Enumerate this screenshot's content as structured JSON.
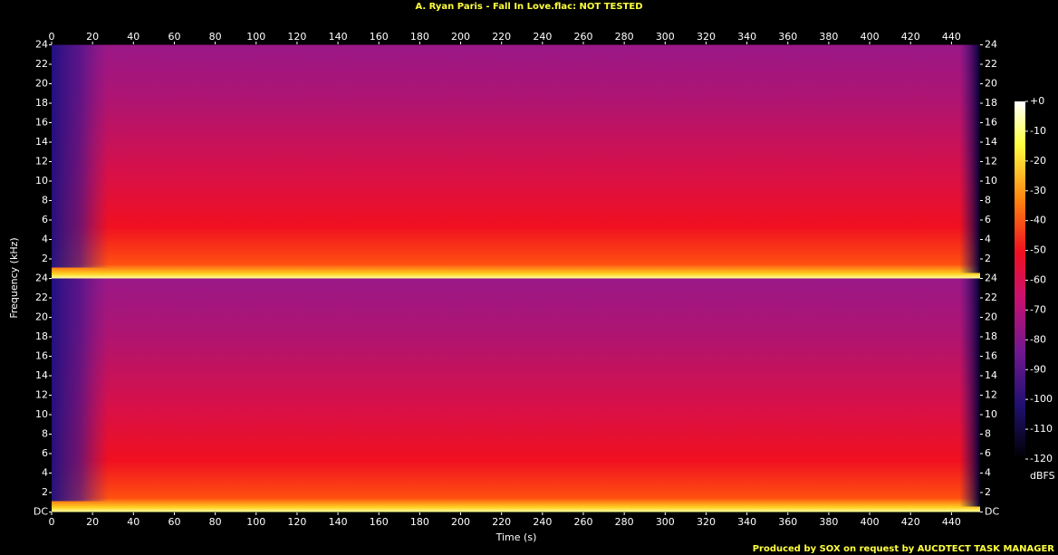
{
  "chart_data": {
    "type": "spectrogram",
    "title": "A. Ryan Paris - Fall In Love.flac: NOT TESTED",
    "x_label": "Time (s)",
    "y_label": "Frequency (kHz)",
    "xlim": [
      0,
      454
    ],
    "xticks": [
      0,
      20,
      40,
      60,
      80,
      100,
      120,
      140,
      160,
      180,
      200,
      220,
      240,
      260,
      280,
      300,
      320,
      340,
      360,
      380,
      400,
      420,
      440
    ],
    "channels": [
      {
        "ylim": [
          0,
          24
        ],
        "yticks": [
          2,
          4,
          6,
          8,
          10,
          12,
          14,
          16,
          18,
          20,
          22,
          24
        ]
      },
      {
        "ylim": [
          0,
          24
        ],
        "yticks": [
          {
            "value": 0,
            "label": "DC"
          },
          2,
          4,
          6,
          8,
          10,
          12,
          14,
          16,
          18,
          20,
          22,
          24
        ]
      }
    ],
    "colorbar": {
      "label": "dBFS",
      "lim": [
        -120,
        0
      ],
      "ticks": [
        {
          "value": 0,
          "label": "+0"
        },
        -10,
        -20,
        -30,
        -40,
        -50,
        -60,
        -70,
        -80,
        -90,
        -100,
        -110,
        -120
      ]
    },
    "footer": "Produced by SOX on request by AUCDTECT TASK MANAGER"
  }
}
